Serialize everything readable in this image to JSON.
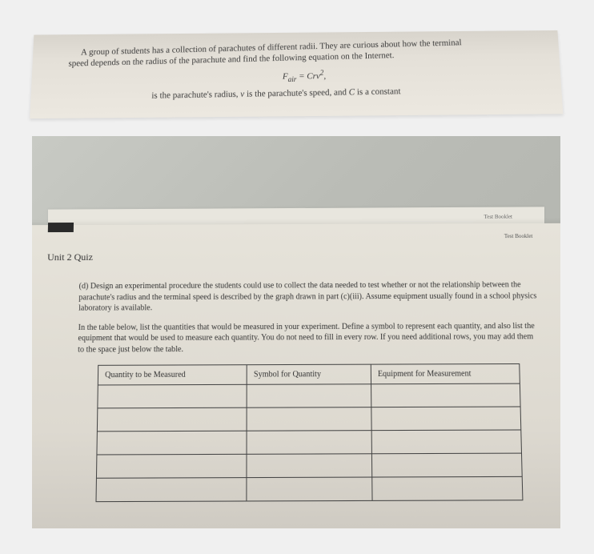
{
  "top_paper": {
    "line1": "A group of students has a collection of parachutes of different radii. They are curious about how the terminal",
    "line2": "speed depends on the radius of the parachute and find the following equation on the Internet.",
    "formula_html": "F_air = Crv²,",
    "line3_prefix": "is the parachute's radius, ",
    "line3_mid_italic": "v",
    "line3_mid": " is the parachute's speed, and ",
    "line3_C": "C",
    "line3_suffix": " is a constant"
  },
  "back_sheet_label": "Test Booklet",
  "main_sheet": {
    "tag_text": "",
    "booklet_label": "Test Booklet",
    "title": "Unit 2 Quiz",
    "para_d": "(d) Design an experimental procedure the students could use to collect the data needed to test whether or not the relationship between the parachute's radius and the terminal speed is described by the graph drawn in part (c)(iii). Assume equipment usually found in a school physics laboratory is available.",
    "para_instructions": "In the table below, list the quantities that would be measured in your experiment. Define a symbol to represent each quantity, and also list the equipment that would be used to measure each quantity. You do not need to fill in every row. If you need additional rows, you may add them to the space just below the table.",
    "table": {
      "headers": [
        "Quantity to be Measured",
        "Symbol for Quantity",
        "Equipment for Measurement"
      ],
      "rows": [
        [
          "",
          "",
          ""
        ],
        [
          "",
          "",
          ""
        ],
        [
          "",
          "",
          ""
        ],
        [
          "",
          "",
          ""
        ],
        [
          "",
          "",
          ""
        ]
      ]
    }
  },
  "colors": {
    "page_bg": "#f0f0f0",
    "paper_light": "#e6e3da",
    "paper_dark": "#c9c5bd",
    "counter_bg": "#babcb6",
    "text": "#2a2a2a",
    "border": "#444444"
  }
}
